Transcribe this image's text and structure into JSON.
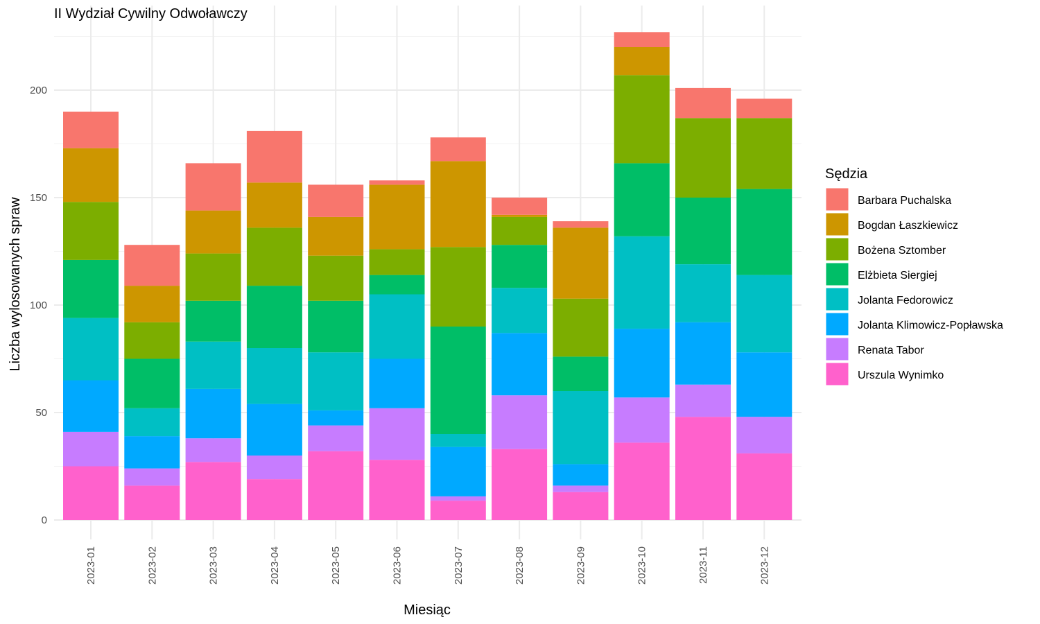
{
  "chart_data": {
    "type": "bar",
    "stacked": true,
    "title": "II Wydział Cywilny Odwoławczy",
    "xlabel": "Miesiąc",
    "ylabel": "Liczba wylosowanych spraw",
    "ylim": [
      0,
      230
    ],
    "yticks": [
      "0",
      "50",
      "100",
      "150",
      "200"
    ],
    "grid": true,
    "legend_title": "Sędzia",
    "legend_position": "right",
    "categories": [
      "2023-01",
      "2023-02",
      "2023-03",
      "2023-04",
      "2023-05",
      "2023-06",
      "2023-07",
      "2023-08",
      "2023-09",
      "2023-10",
      "2023-11",
      "2023-12"
    ],
    "series": [
      {
        "name": "Urszula Wynimko",
        "color": "#FF61CC",
        "values": [
          25,
          16,
          27,
          19,
          32,
          28,
          9,
          33,
          13,
          36,
          48,
          31
        ]
      },
      {
        "name": "Renata Tabor",
        "color": "#C77CFF",
        "values": [
          16,
          8,
          11,
          11,
          12,
          24,
          2,
          25,
          3,
          21,
          15,
          17
        ]
      },
      {
        "name": "Jolanta Klimowicz-Popławska",
        "color": "#00A9FF",
        "values": [
          24,
          15,
          23,
          24,
          7,
          23,
          23,
          29,
          10,
          32,
          29,
          30
        ]
      },
      {
        "name": "Jolanta Fedorowicz",
        "color": "#00BFC4",
        "values": [
          29,
          13,
          22,
          26,
          27,
          30,
          6,
          21,
          34,
          43,
          27,
          36
        ]
      },
      {
        "name": "Elżbieta Siergiej",
        "color": "#00BE67",
        "values": [
          27,
          23,
          19,
          29,
          24,
          9,
          50,
          20,
          16,
          34,
          31,
          40
        ]
      },
      {
        "name": "Bożena Sztomber",
        "color": "#7CAE00",
        "values": [
          27,
          17,
          22,
          27,
          21,
          12,
          37,
          13,
          27,
          41,
          37,
          33
        ]
      },
      {
        "name": "Bogdan Łaszkiewicz",
        "color": "#CD9600",
        "values": [
          25,
          17,
          20,
          21,
          18,
          30,
          40,
          1,
          33,
          13,
          0,
          0
        ]
      },
      {
        "name": "Barbara Puchalska",
        "color": "#F8766D",
        "values": [
          17,
          19,
          22,
          24,
          15,
          2,
          11,
          8,
          3,
          7,
          14,
          9
        ]
      }
    ],
    "legend_order": [
      "Barbara Puchalska",
      "Bogdan Łaszkiewicz",
      "Bożena Sztomber",
      "Elżbieta Siergiej",
      "Jolanta Fedorowicz",
      "Jolanta Klimowicz-Popławska",
      "Renata Tabor",
      "Urszula Wynimko"
    ]
  }
}
